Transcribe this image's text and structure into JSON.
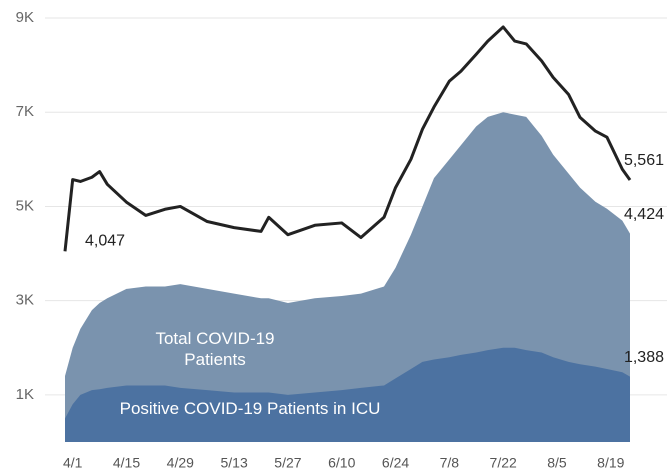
{
  "chart_data": {
    "type": "line",
    "x": [
      "3/30",
      "4/1",
      "4/3",
      "4/6",
      "4/8",
      "4/10",
      "4/15",
      "4/20",
      "4/25",
      "4/29",
      "5/6",
      "5/13",
      "5/20",
      "5/22",
      "5/27",
      "6/3",
      "6/10",
      "6/15",
      "6/21",
      "6/24",
      "6/28",
      "7/1",
      "7/4",
      "7/8",
      "7/11",
      "7/15",
      "7/18",
      "7/22",
      "7/25",
      "7/28",
      "8/1",
      "8/4",
      "8/8",
      "8/11",
      "8/15",
      "8/18",
      "8/22",
      "8/24"
    ],
    "series": [
      {
        "color": "#222222",
        "style": "line",
        "values": [
          4047,
          5570,
          5530,
          5620,
          5740,
          5470,
          5090,
          4810,
          4940,
          5000,
          4680,
          4550,
          4470,
          4770,
          4400,
          4600,
          4650,
          4340,
          4770,
          5400,
          6000,
          6640,
          7110,
          7660,
          7870,
          8230,
          8510,
          8810,
          8510,
          8450,
          8090,
          7740,
          7380,
          6890,
          6600,
          6470,
          5790,
          5561
        ],
        "value_labels": [
          "4,047",
          null,
          null,
          null,
          null,
          null,
          null,
          null,
          null,
          null,
          null,
          null,
          null,
          null,
          null,
          null,
          null,
          null,
          null,
          null,
          null,
          null,
          null,
          null,
          null,
          null,
          null,
          null,
          null,
          null,
          null,
          null,
          null,
          null,
          null,
          null,
          null,
          "5,561"
        ]
      },
      {
        "name": "Total COVID-19 Patients",
        "color": "#7a93ae",
        "style": "area",
        "values": [
          1400,
          2000,
          2400,
          2800,
          2950,
          3050,
          3250,
          3300,
          3300,
          3350,
          3250,
          3150,
          3050,
          3050,
          2950,
          3050,
          3100,
          3150,
          3300,
          3700,
          4400,
          5000,
          5600,
          6000,
          6300,
          6700,
          6900,
          7000,
          6950,
          6900,
          6500,
          6100,
          5700,
          5400,
          5100,
          4950,
          4700,
          4424
        ],
        "value_labels": [
          null,
          null,
          null,
          null,
          null,
          null,
          null,
          null,
          null,
          null,
          null,
          null,
          null,
          null,
          null,
          null,
          null,
          null,
          null,
          null,
          null,
          null,
          null,
          null,
          null,
          null,
          null,
          null,
          null,
          null,
          null,
          null,
          null,
          null,
          null,
          null,
          null,
          "4,424"
        ]
      },
      {
        "name": "Positive COVID-19 Patients in ICU",
        "color": "#4c72a1",
        "style": "area",
        "values": [
          500,
          800,
          1000,
          1100,
          1120,
          1150,
          1200,
          1200,
          1200,
          1150,
          1100,
          1050,
          1050,
          1050,
          1000,
          1050,
          1100,
          1150,
          1200,
          1350,
          1550,
          1700,
          1750,
          1800,
          1850,
          1900,
          1950,
          2000,
          2000,
          1950,
          1900,
          1800,
          1700,
          1650,
          1600,
          1550,
          1480,
          1388
        ],
        "value_labels": [
          null,
          null,
          null,
          null,
          null,
          null,
          null,
          null,
          null,
          null,
          null,
          null,
          null,
          null,
          null,
          null,
          null,
          null,
          null,
          null,
          null,
          null,
          null,
          null,
          null,
          null,
          null,
          null,
          null,
          null,
          null,
          null,
          null,
          null,
          null,
          null,
          null,
          "1,388"
        ]
      }
    ],
    "xticks": [
      "4/1",
      "4/15",
      "4/29",
      "5/13",
      "5/27",
      "6/10",
      "6/24",
      "7/8",
      "7/22",
      "8/5",
      "8/19"
    ],
    "ylim": [
      0,
      9000
    ],
    "yticks": [
      {
        "value": 1000,
        "label": "1K"
      },
      {
        "value": 3000,
        "label": "3K"
      },
      {
        "value": 5000,
        "label": "5K"
      },
      {
        "value": 7000,
        "label": "7K"
      },
      {
        "value": 9000,
        "label": "9K"
      }
    ],
    "grid": true
  }
}
